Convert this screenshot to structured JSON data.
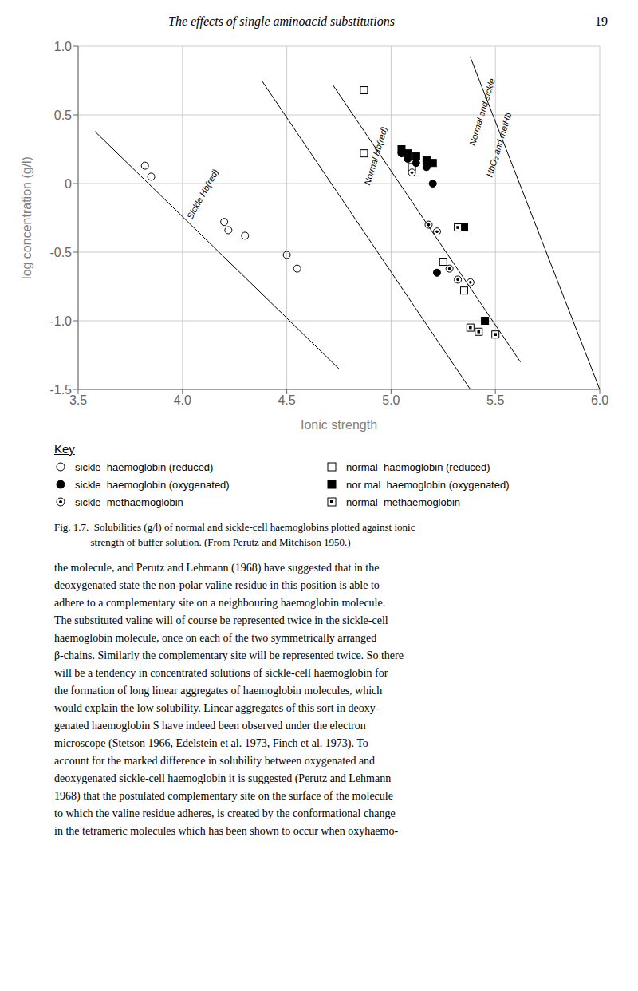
{
  "chart_data": {
    "type": "scatter",
    "title": "The effects of single aminoacid substitutions",
    "page_number": "19",
    "x_label": "Ionic strength",
    "y_label": "log concentration (g/l)",
    "xlim": [
      3.5,
      6.0
    ],
    "ylim": [
      -1.5,
      1.0
    ],
    "xticks": [
      3.5,
      {
        "value": 4.0,
        "label": "4.0"
      },
      4.5,
      {
        "value": 5.0,
        "label": "5.0"
      },
      5.5,
      {
        "value": 6.0,
        "label": "6.0"
      }
    ],
    "yticks": [
      -1.5,
      {
        "value": -1.0,
        "label": "-1.0"
      },
      -0.5,
      0,
      0.5,
      {
        "value": 1.0,
        "label": "1.0"
      }
    ],
    "grid": true,
    "series": [
      {
        "type": "scatter",
        "name": "sickle  haemoglobin (reduced)",
        "color": "#000000",
        "marker": "open circle",
        "x": [
          3.82,
          3.85,
          4.2,
          4.22,
          4.3,
          4.5,
          4.55
        ],
        "y": [
          0.13,
          0.05,
          -0.28,
          -0.34,
          -0.38,
          -0.52,
          -0.62
        ]
      },
      {
        "type": "scatter",
        "name": "normal  haemoglobin (reduced)",
        "color": "#000000",
        "marker": "open square",
        "x": [
          4.87,
          4.87,
          5.1,
          5.25,
          5.35
        ],
        "y": [
          0.68,
          0.22,
          0.12,
          -0.57,
          -0.78
        ]
      },
      {
        "type": "scatter",
        "name": "sickle  haemoglobin (oxygenated)",
        "color": "#000000",
        "marker": "filled circle",
        "x": [
          5.05,
          5.08,
          5.12,
          5.17,
          5.2,
          5.22
        ],
        "y": [
          0.22,
          0.18,
          0.15,
          0.12,
          0.0,
          -0.65
        ]
      },
      {
        "type": "scatter",
        "name": "nor mal  haemoglobin (oxygenated)",
        "color": "#000000",
        "marker": "filled square",
        "x": [
          5.05,
          5.08,
          5.12,
          5.17,
          5.2,
          5.35,
          5.45
        ],
        "y": [
          0.25,
          0.22,
          0.2,
          0.17,
          0.15,
          -0.32,
          -1.0
        ]
      },
      {
        "type": "scatter",
        "name": "sickle  methaemoglobin",
        "color": "#000000",
        "marker": "dotted circle",
        "x": [
          5.1,
          5.18,
          5.22,
          5.28,
          5.32,
          5.38
        ],
        "y": [
          0.08,
          -0.3,
          -0.35,
          -0.62,
          -0.7,
          -0.72
        ]
      },
      {
        "type": "scatter",
        "name": "normal  methaemoglobin",
        "color": "#000000",
        "marker": "dotted square",
        "x": [
          5.32,
          5.38,
          5.42,
          5.5
        ],
        "y": [
          -0.32,
          -1.05,
          -1.08,
          -1.1
        ]
      },
      {
        "type": "line",
        "color": "#000000",
        "x": [
          3.58,
          4.75
        ],
        "y": [
          0.38,
          -1.35
        ]
      },
      {
        "type": "line",
        "color": "#000000",
        "x": [
          4.38,
          5.38
        ],
        "y": [
          0.75,
          -1.5
        ]
      },
      {
        "type": "line",
        "color": "#000000",
        "x": [
          4.72,
          5.62
        ],
        "y": [
          0.72,
          -1.3
        ]
      },
      {
        "type": "line",
        "color": "#000000",
        "x": [
          5.38,
          6.0
        ],
        "y": [
          0.92,
          -1.5
        ]
      }
    ],
    "annotations": [
      {
        "text": "Sickle Hb(red)",
        "x": 4.1,
        "y": -0.08
      },
      {
        "text": "Normal Hb(red)",
        "x": 4.93,
        "y": 0.2
      },
      {
        "text": "Normal and sickle",
        "x": 5.44,
        "y": 0.52
      },
      {
        "text": "HbO₂ and metHb",
        "x": 5.52,
        "y": 0.28
      }
    ],
    "key_title": "Key",
    "caption": [
      "Fig. 1.7.  Solubilities (g/l) of normal and sickle-cell haemoglobins plotted against ionic",
      "              strength of buffer solution. (From Perutz and Mitchison 1950.)"
    ],
    "body_text": [
      "the molecule, and Perutz and Lehmann (1968) have suggested that in the",
      "deoxygenated state the non-polar valine residue in this position is able to",
      "adhere to a complementary site on a neighbouring haemoglobin molecule.",
      "The substituted valine will of course be represented twice in the sickle-cell",
      "haemoglobin molecule, once on each of the two symmetrically arranged",
      "β-chains. Similarly the complementary site will be represented twice. So there",
      "will be a tendency in concentrated solutions of sickle-cell haemoglobin for",
      "the formation of long linear aggregates of haemoglobin molecules, which",
      "would explain the low solubility. Linear aggregates of this sort in deoxy-",
      "genated haemoglobin S have indeed been observed under the electron",
      "microscope (Stetson 1966, Edelstein et al. 1973, Finch et al. 1973). To",
      "account for the marked difference in solubility between oxygenated and",
      "deoxygenated sickle-cell haemoglobin it is suggested (Perutz and Lehmann",
      "1968) that the postulated complementary site on the surface of the molecule",
      "to which the valine residue adheres, is created by the conformational change",
      "in the tetrameric molecules which has been shown to occur when oxyhaemo-"
    ]
  }
}
